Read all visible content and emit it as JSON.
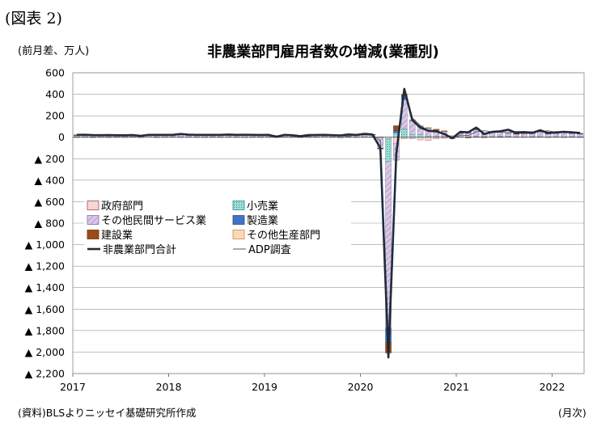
{
  "figure_label": "(図表 2)",
  "unit_label": "(前月差、万人)",
  "source_label": "(資料)BLSよりニッセイ基礎研究所作成",
  "x_unit_label": "(月次)",
  "colors": {
    "government": "#f7d6d6",
    "retail": "#9fdcd8",
    "private_services": "#d8c8e6",
    "manufacturing": "#4472c4",
    "construction": "#9c4a16",
    "other_production": "#fbd9b7",
    "total": "#1f2b3a",
    "adp": "#555555",
    "grid": "#999999"
  },
  "chart_data": {
    "type": "bar",
    "title": "非農業部門雇用者数の増減(業種別)",
    "xlabel": "",
    "ylabel": "(前月差、万人)",
    "ylim": [
      -2200,
      600
    ],
    "yticks": [
      600,
      400,
      200,
      0,
      -200,
      -400,
      -600,
      -800,
      -1000,
      -1200,
      -1400,
      -1600,
      -1800,
      -2000,
      -2200
    ],
    "ytick_labels": [
      "600",
      "400",
      "200",
      "0",
      "▲ 200",
      "▲ 400",
      "▲ 600",
      "▲ 800",
      "▲ 1,000",
      "▲ 1,200",
      "▲ 1,400",
      "▲ 1,600",
      "▲ 1,800",
      "▲ 2,000",
      "▲ 2,200"
    ],
    "xtick_labels": [
      "2017",
      "2018",
      "2019",
      "2020",
      "2021",
      "2022"
    ],
    "start_label": "2017",
    "grid": true,
    "legend_position": "left-middle",
    "legend": [
      {
        "key": "government",
        "label": "政府部門"
      },
      {
        "key": "retail",
        "label": "小売業"
      },
      {
        "key": "private_services",
        "label": "その他民間サービス業"
      },
      {
        "key": "manufacturing",
        "label": "製造業"
      },
      {
        "key": "construction",
        "label": "建設業"
      },
      {
        "key": "other_production",
        "label": "その他生産部門"
      },
      {
        "key": "total",
        "label": "非農業部門合計"
      },
      {
        "key": "adp",
        "label": "ADP調査"
      }
    ],
    "series": [
      {
        "key": "government",
        "values": [
          2,
          2,
          3,
          2,
          1,
          2,
          2,
          3,
          1,
          0,
          2,
          2,
          3,
          2,
          3,
          2,
          1,
          2,
          2,
          3,
          2,
          1,
          2,
          2,
          3,
          2,
          3,
          2,
          1,
          2,
          2,
          5,
          2,
          1,
          2,
          2,
          3,
          2,
          3,
          -15,
          -60,
          -15,
          -15,
          -25,
          -30,
          -15,
          -10,
          -10,
          3,
          2,
          3,
          2,
          3,
          3,
          5,
          3,
          2,
          3,
          3,
          2,
          3,
          2,
          3,
          2
        ]
      },
      {
        "key": "retail",
        "values": [
          1,
          0,
          -1,
          0,
          0,
          0,
          0,
          0,
          0,
          0,
          1,
          0,
          0,
          0,
          0,
          0,
          0,
          0,
          0,
          0,
          0,
          0,
          0,
          0,
          0,
          0,
          0,
          0,
          0,
          0,
          0,
          0,
          0,
          0,
          0,
          0,
          0,
          0,
          -2,
          -210,
          40,
          80,
          26,
          25,
          12,
          10,
          5,
          -5,
          1,
          1,
          4,
          5,
          2,
          6,
          3,
          0,
          0,
          3,
          2,
          1,
          2,
          1,
          3,
          2
        ]
      },
      {
        "key": "private_services",
        "values": [
          16,
          20,
          17,
          15,
          16,
          17,
          16,
          18,
          10,
          20,
          16,
          18,
          16,
          23,
          15,
          17,
          18,
          18,
          17,
          18,
          15,
          20,
          16,
          18,
          17,
          5,
          17,
          16,
          8,
          17,
          16,
          18,
          15,
          17,
          20,
          16,
          21,
          22,
          -100,
          -1550,
          -150,
          270,
          130,
          75,
          70,
          55,
          50,
          8,
          36,
          40,
          65,
          20,
          40,
          40,
          60,
          28,
          35,
          30,
          45,
          30,
          32,
          40,
          32,
          28
        ]
      },
      {
        "key": "manufacturing",
        "values": [
          1,
          1,
          1,
          1,
          1,
          1,
          1,
          1,
          1,
          2,
          2,
          2,
          2,
          3,
          2,
          2,
          2,
          2,
          2,
          2,
          2,
          2,
          2,
          1,
          1,
          0,
          1,
          0,
          0,
          0,
          0,
          0,
          0,
          -4,
          5,
          0,
          0,
          1,
          -3,
          -135,
          22,
          36,
          3,
          3,
          6,
          3,
          3,
          3,
          1,
          1,
          3,
          3,
          2,
          2,
          3,
          2,
          2,
          3,
          3,
          2,
          2,
          3,
          1,
          2
        ]
      },
      {
        "key": "construction",
        "values": [
          2,
          3,
          2,
          1,
          1,
          1,
          1,
          1,
          1,
          1,
          2,
          2,
          2,
          3,
          2,
          2,
          2,
          2,
          2,
          2,
          2,
          2,
          2,
          1,
          1,
          0,
          1,
          0,
          0,
          1,
          1,
          1,
          1,
          1,
          1,
          1,
          4,
          1,
          -3,
          -98,
          45,
          15,
          3,
          2,
          1,
          8,
          3,
          2,
          1,
          -6,
          11,
          -1,
          1,
          1,
          1,
          2,
          1,
          1,
          2,
          2,
          2,
          1,
          2,
          2
        ]
      },
      {
        "key": "other_production",
        "values": [
          0,
          0,
          0,
          0,
          0,
          0,
          0,
          0,
          0,
          0,
          0,
          0,
          0,
          0,
          0,
          0,
          0,
          0,
          0,
          0,
          0,
          0,
          0,
          0,
          0,
          0,
          0,
          0,
          0,
          0,
          0,
          0,
          0,
          0,
          0,
          0,
          0,
          0,
          0,
          -3,
          -5,
          2,
          1,
          1,
          1,
          1,
          1,
          1,
          0,
          0,
          1,
          0,
          0,
          0,
          0,
          0,
          0,
          0,
          0,
          0,
          0,
          0,
          0,
          0
        ]
      },
      {
        "key": "total",
        "values": [
          22,
          23,
          20,
          19,
          20,
          18,
          18,
          20,
          13,
          22,
          22,
          22,
          22,
          30,
          24,
          22,
          22,
          22,
          22,
          25,
          22,
          23,
          22,
          21,
          22,
          5,
          22,
          18,
          10,
          20,
          21,
          22,
          19,
          17,
          26,
          21,
          31,
          26,
          -100,
          -2050,
          -150,
          450,
          160,
          90,
          60,
          55,
          30,
          -10,
          50,
          45,
          90,
          30,
          50,
          55,
          70,
          40,
          45,
          40,
          65,
          40,
          45,
          50,
          45,
          40
        ]
      },
      {
        "key": "adp",
        "values": [
          20,
          22,
          22,
          16,
          19,
          20,
          21,
          20,
          14,
          24,
          20,
          22,
          24,
          23,
          22,
          20,
          19,
          22,
          20,
          18,
          21,
          22,
          21,
          18,
          22,
          14,
          18,
          21,
          5,
          10,
          16,
          18,
          14,
          12,
          10,
          19,
          22,
          18,
          -30,
          -1860,
          -200,
          420,
          180,
          110,
          60,
          50,
          35,
          -10,
          20,
          15,
          50,
          60,
          50,
          60,
          35,
          55,
          55,
          50,
          50,
          60,
          45,
          50,
          45,
          30
        ]
      }
    ]
  }
}
